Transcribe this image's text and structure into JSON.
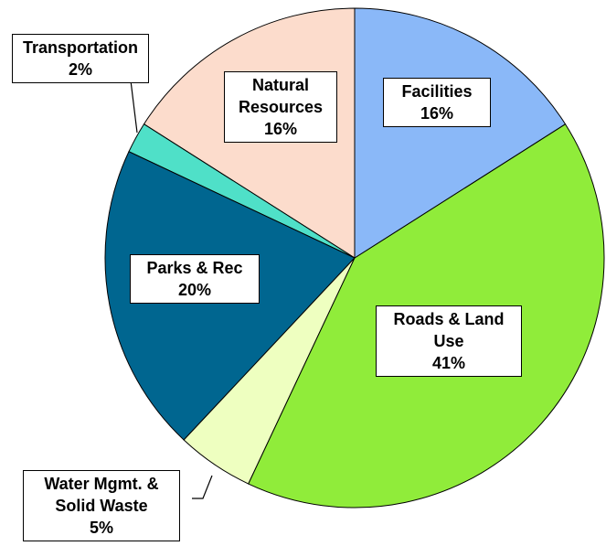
{
  "chart_data": {
    "type": "pie",
    "categories": [
      "Facilities",
      "Roads & Land Use",
      "Water Mgmt. & Solid Waste",
      "Parks & Rec",
      "Transportation",
      "Natural Resources"
    ],
    "values": [
      16,
      41,
      5,
      20,
      2,
      16
    ],
    "value_labels": [
      "16%",
      "41%",
      "5%",
      "20%",
      "2%",
      "16%"
    ],
    "colors": [
      "#8ab8f8",
      "#90ec3a",
      "#eeffc0",
      "#006690",
      "#4fe0c8",
      "#fcdccc"
    ]
  }
}
